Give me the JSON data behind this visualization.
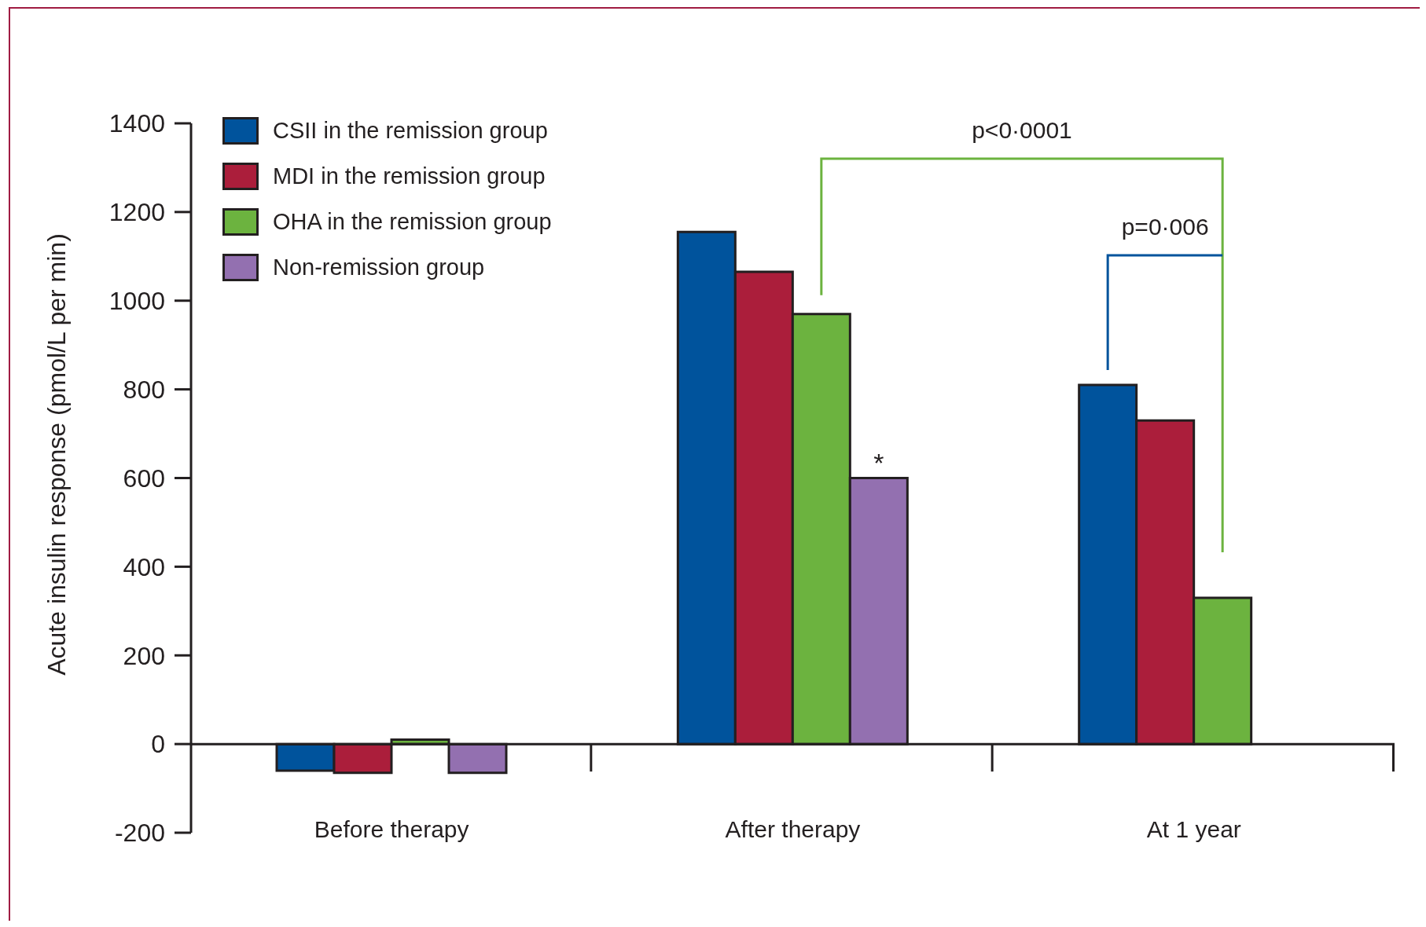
{
  "chart_data": {
    "type": "bar",
    "ylabel": "Acute insulin response (pmol/L per min)",
    "categories": [
      "Before therapy",
      "After therapy",
      "At 1 year"
    ],
    "series": [
      {
        "name": "CSII in the remission group",
        "color": "#00539c",
        "values": [
          -60,
          1155,
          810
        ]
      },
      {
        "name": "MDI in the remission group",
        "color": "#ab1e3b",
        "values": [
          -65,
          1065,
          730
        ]
      },
      {
        "name": "OHA in the remission group",
        "color": "#6cb33f",
        "values": [
          10,
          970,
          330
        ]
      },
      {
        "name": "Non-remission group",
        "color": "#9370b0",
        "values": [
          -65,
          600,
          null
        ]
      }
    ],
    "ylim": [
      -200,
      1400
    ],
    "yticks": [
      -200,
      0,
      200,
      400,
      600,
      800,
      1000,
      1200,
      1400
    ],
    "legend": "top left",
    "annotations": [
      "p<0·0001",
      "p=0·006",
      "*"
    ]
  }
}
